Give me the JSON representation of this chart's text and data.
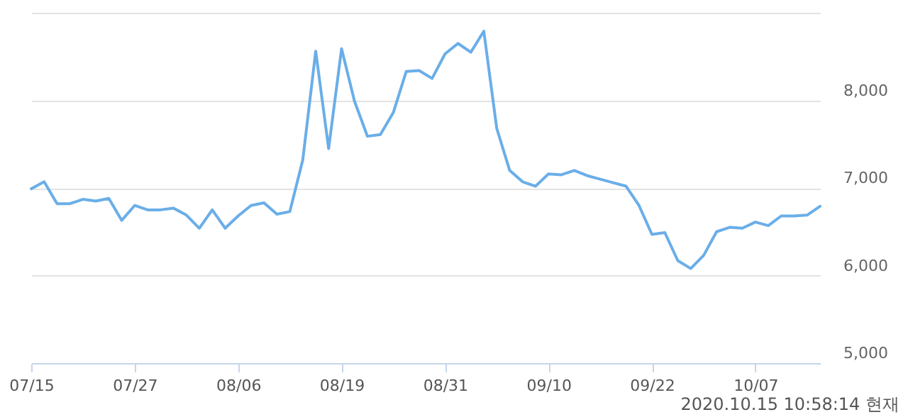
{
  "chart_data": {
    "type": "line",
    "categories": [
      "07/15",
      null,
      null,
      null,
      null,
      null,
      null,
      null,
      "07/27",
      null,
      null,
      null,
      null,
      null,
      null,
      null,
      "08/06",
      null,
      null,
      null,
      null,
      null,
      null,
      null,
      "08/19",
      null,
      null,
      null,
      null,
      null,
      null,
      null,
      "08/31",
      null,
      null,
      null,
      null,
      null,
      null,
      null,
      "09/10",
      null,
      null,
      null,
      null,
      null,
      null,
      null,
      "09/22",
      null,
      null,
      null,
      null,
      null,
      null,
      null,
      "10/07",
      null,
      null,
      null,
      null,
      null
    ],
    "values": [
      6990,
      7070,
      6820,
      6820,
      6870,
      6850,
      6880,
      6630,
      6800,
      6750,
      6750,
      6770,
      6690,
      6540,
      6750,
      6540,
      6680,
      6800,
      6830,
      6700,
      6730,
      7320,
      8560,
      7450,
      8590,
      7990,
      7590,
      7610,
      7860,
      8330,
      8340,
      8250,
      8530,
      8650,
      8550,
      8790,
      7680,
      7200,
      7070,
      7020,
      7160,
      7150,
      7200,
      7140,
      7100,
      7060,
      7020,
      6800,
      6470,
      6490,
      6170,
      6080,
      6230,
      6500,
      6550,
      6540,
      6610,
      6570,
      6680,
      6680,
      6690,
      6790
    ],
    "color": "#6aaee8",
    "ylim": [
      5000,
      9000
    ],
    "yticks": [
      {
        "value": 5000,
        "label": "5,000"
      },
      {
        "value": 6000,
        "label": "6,000"
      },
      {
        "value": 7000,
        "label": "7,000"
      },
      {
        "value": 8000,
        "label": "8,000"
      },
      {
        "value": 9000,
        "label": null
      }
    ],
    "grid": "y",
    "annotations": [
      "2020.10.15 10:58:14 현재"
    ]
  }
}
